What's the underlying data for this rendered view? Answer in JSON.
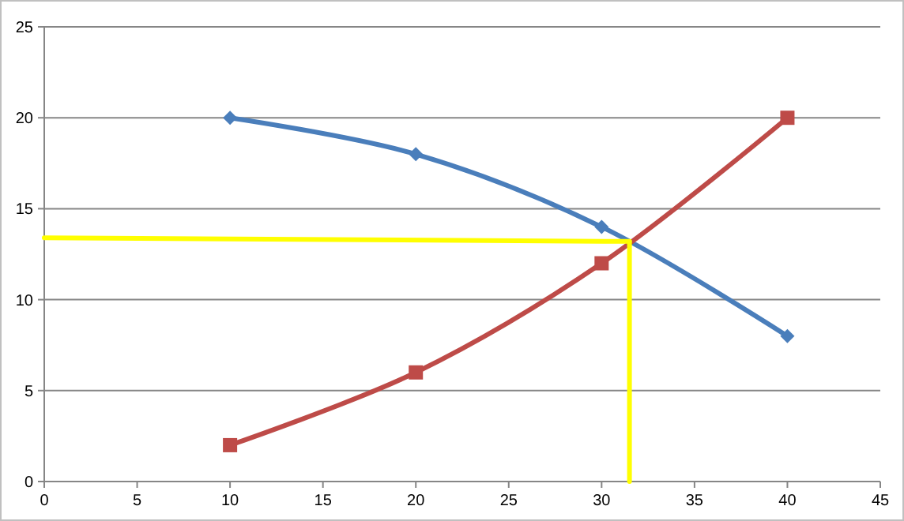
{
  "chart_data": {
    "type": "line",
    "xlim": [
      0,
      45
    ],
    "xticks": [
      0,
      5,
      10,
      15,
      20,
      25,
      30,
      35,
      40,
      45
    ],
    "ylim": [
      0,
      25
    ],
    "yticks": [
      0,
      5,
      10,
      15,
      20,
      25
    ],
    "grid": "y",
    "series": [
      {
        "color": "#4a7ebb",
        "marker": "diamond",
        "x": [
          10,
          20,
          30,
          40
        ],
        "values": [
          20,
          18,
          14,
          8
        ]
      },
      {
        "color": "#be4b48",
        "marker": "square",
        "x": [
          10,
          20,
          30,
          40
        ],
        "values": [
          2,
          6,
          12,
          20
        ]
      },
      {
        "color": "#ffff00",
        "marker": "none",
        "x": [
          0,
          31.5
        ],
        "values": [
          13.4,
          13.2
        ]
      },
      {
        "color": "#ffff00",
        "marker": "none",
        "x": [
          31.5,
          31.5
        ],
        "values": [
          13.2,
          0
        ]
      }
    ]
  }
}
